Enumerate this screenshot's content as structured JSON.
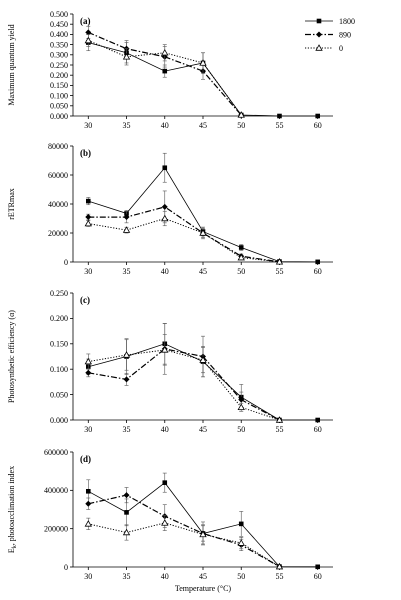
{
  "chart_data": [
    {
      "type": "line",
      "panel_label": "(a)",
      "ylabel": "Maximum quantum yield",
      "xlabel": "",
      "x": [
        30,
        35,
        40,
        45,
        50,
        55,
        60
      ],
      "xlim": [
        28,
        62
      ],
      "ylim": [
        0,
        0.5
      ],
      "yticks": [
        0.0,
        0.05,
        0.1,
        0.15,
        0.2,
        0.25,
        0.3,
        0.35,
        0.4,
        0.45,
        0.5
      ],
      "ytick_labels": [
        "0.000",
        "0.050",
        "0.100",
        "0.150",
        "0.200",
        "0.250",
        "0.300",
        "0.350",
        "0.400",
        "0.450",
        "0.500"
      ],
      "legend": "top-right",
      "series": [
        {
          "name": "1800",
          "values": [
            0.36,
            0.31,
            0.22,
            0.26,
            0.005,
            0.0,
            0.0
          ],
          "errors": [
            0.04,
            0.05,
            0.03,
            0.05,
            0.0,
            0.0,
            0.0
          ]
        },
        {
          "name": "890",
          "values": [
            0.41,
            0.33,
            0.29,
            0.22,
            0.005,
            null,
            null
          ],
          "errors": [
            0.03,
            0.04,
            0.05,
            0.04,
            0.0,
            null,
            null
          ]
        },
        {
          "name": "0",
          "values": [
            0.37,
            0.29,
            0.31,
            0.26,
            0.005,
            null,
            null
          ],
          "errors": [
            0.03,
            0.04,
            0.04,
            0.05,
            0.0,
            null,
            null
          ]
        }
      ]
    },
    {
      "type": "line",
      "panel_label": "(b)",
      "ylabel": "rETRmax",
      "xlabel": "",
      "x": [
        30,
        35,
        40,
        45,
        50,
        55,
        60
      ],
      "xlim": [
        28,
        62
      ],
      "ylim": [
        0,
        80000
      ],
      "yticks": [
        0,
        20000,
        40000,
        60000,
        80000
      ],
      "ytick_labels": [
        "0",
        "20000",
        "40000",
        "60000",
        "80000"
      ],
      "series": [
        {
          "name": "1800",
          "values": [
            42000,
            33500,
            65000,
            21000,
            10000,
            300,
            100
          ],
          "errors": [
            2500,
            2000,
            10000,
            3000,
            2000,
            0,
            0
          ]
        },
        {
          "name": "890",
          "values": [
            31000,
            31000,
            38000,
            20000,
            4000,
            100,
            null
          ],
          "errors": [
            2000,
            4000,
            11000,
            4000,
            1500,
            0,
            null
          ]
        },
        {
          "name": "0",
          "values": [
            26500,
            22000,
            30000,
            20000,
            3000,
            100,
            null
          ],
          "errors": [
            2000,
            2000,
            5000,
            3000,
            1000,
            0,
            null
          ]
        }
      ]
    },
    {
      "type": "line",
      "panel_label": "(c)",
      "ylabel": "Photosynthetic efficiency (α)",
      "xlabel": "",
      "x": [
        30,
        35,
        40,
        45,
        50,
        55,
        60
      ],
      "xlim": [
        28,
        62
      ],
      "ylim": [
        0,
        0.25
      ],
      "yticks": [
        0.0,
        0.05,
        0.1,
        0.15,
        0.2,
        0.25
      ],
      "ytick_labels": [
        "0.000",
        "0.050",
        "0.100",
        "0.150",
        "0.200",
        "0.250"
      ],
      "series": [
        {
          "name": "1800",
          "values": [
            0.105,
            0.125,
            0.15,
            0.115,
            0.045,
            0.0,
            0.0
          ],
          "errors": [
            0.015,
            0.035,
            0.04,
            0.03,
            0.025,
            0.0,
            0.0
          ]
        },
        {
          "name": "890",
          "values": [
            0.093,
            0.08,
            0.14,
            0.125,
            0.04,
            0.0,
            null
          ],
          "errors": [
            0.008,
            0.012,
            0.05,
            0.04,
            0.015,
            0.0,
            null
          ]
        },
        {
          "name": "0",
          "values": [
            0.115,
            0.128,
            0.138,
            0.118,
            0.025,
            0.0,
            null
          ],
          "errors": [
            0.015,
            0.03,
            0.03,
            0.025,
            0.008,
            0.0,
            null
          ]
        }
      ]
    },
    {
      "type": "line",
      "panel_label": "(d)",
      "ylabel": "Ek, photoacclimation index",
      "ylabel_main": "E",
      "ylabel_sub": "k",
      "ylabel_rest": ", photoacclimation index",
      "xlabel": "Temperature (°C)",
      "x": [
        30,
        35,
        40,
        45,
        50,
        55,
        60
      ],
      "xlim": [
        28,
        62
      ],
      "ylim": [
        0,
        600000
      ],
      "yticks": [
        0,
        200000,
        400000,
        600000
      ],
      "ytick_labels": [
        "0",
        "200000",
        "400000",
        "600000"
      ],
      "xtick_labels": [
        "30",
        "35",
        "40",
        "45",
        "50",
        "55",
        "60"
      ],
      "series": [
        {
          "name": "1800",
          "values": [
            395000,
            285000,
            440000,
            175000,
            225000,
            2000,
            1000
          ],
          "errors": [
            60000,
            70000,
            50000,
            60000,
            65000,
            0,
            0
          ]
        },
        {
          "name": "890",
          "values": [
            330000,
            375000,
            265000,
            175000,
            115000,
            2000,
            null
          ],
          "errors": [
            30000,
            40000,
            60000,
            40000,
            30000,
            0,
            null
          ]
        },
        {
          "name": "0",
          "values": [
            225000,
            180000,
            230000,
            170000,
            125000,
            2000,
            null
          ],
          "errors": [
            30000,
            40000,
            40000,
            50000,
            30000,
            0,
            null
          ]
        }
      ]
    }
  ]
}
